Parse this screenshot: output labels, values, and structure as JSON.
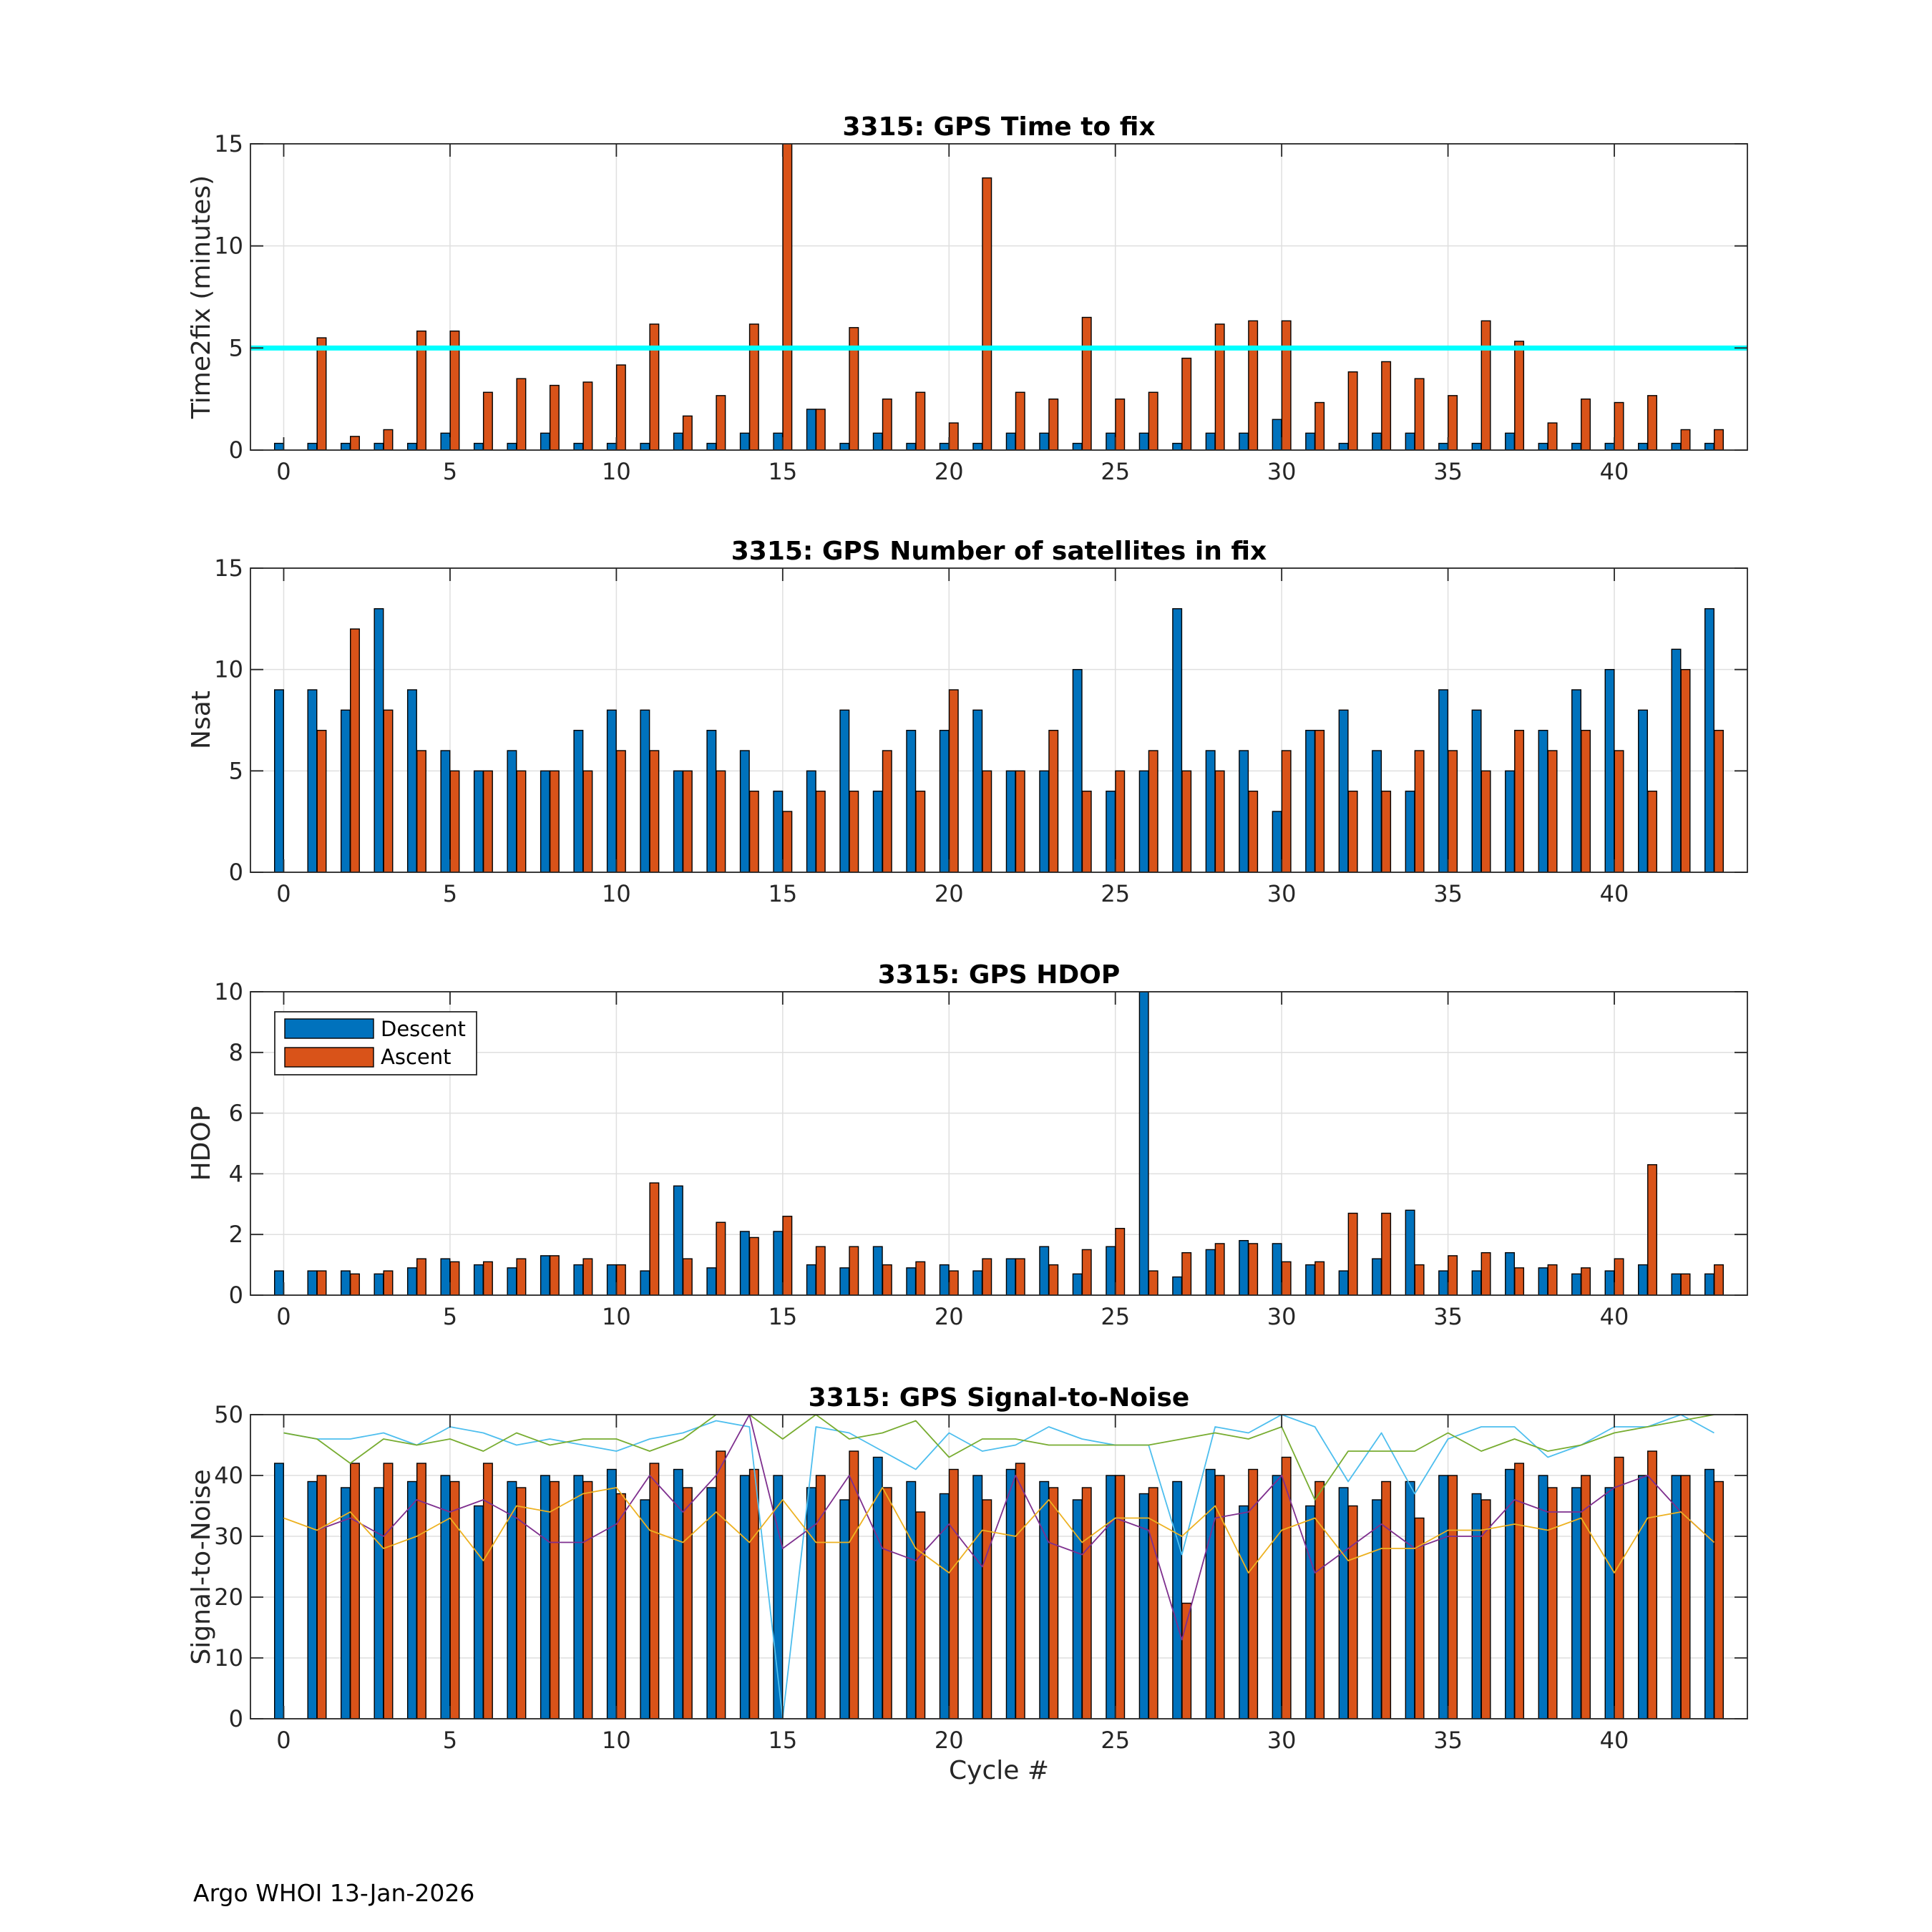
{
  "footer": "Argo WHOI 13-Jan-2026",
  "colors": {
    "descent": "#0072BD",
    "ascent": "#D95319",
    "background": "#FFFFFF"
  },
  "chart_data": [
    {
      "type": "bar",
      "title": "3315: GPS Time to fix",
      "ylabel": "Time2fix (minutes)",
      "xlim": [
        -1,
        44
      ],
      "ylim": [
        0,
        15
      ],
      "xticks": [
        0,
        5,
        10,
        15,
        20,
        25,
        30,
        35,
        40
      ],
      "yticks": [
        0,
        5,
        10,
        15
      ],
      "grid": true,
      "x": [
        0,
        1,
        2,
        3,
        4,
        5,
        6,
        7,
        8,
        9,
        10,
        11,
        12,
        13,
        14,
        15,
        16,
        17,
        18,
        19,
        20,
        21,
        22,
        23,
        24,
        25,
        26,
        27,
        28,
        29,
        30,
        31,
        32,
        33,
        34,
        35,
        36,
        37,
        38,
        39,
        40,
        41,
        42,
        43
      ],
      "series": {
        "descent": [
          0.33,
          0.33,
          0.33,
          0.33,
          0.33,
          0.83,
          0.33,
          0.33,
          0.83,
          0.33,
          0.33,
          0.33,
          0.83,
          0.33,
          0.83,
          0.83,
          2.0,
          0.33,
          0.83,
          0.33,
          0.33,
          0.33,
          0.83,
          0.83,
          0.33,
          0.83,
          0.83,
          0.33,
          0.83,
          0.83,
          1.5,
          0.83,
          0.33,
          0.83,
          0.83,
          0.33,
          0.33,
          0.83,
          0.33,
          0.33,
          0.33,
          0.33,
          0.33,
          0.33
        ],
        "ascent": [
          null,
          5.5,
          0.67,
          1.0,
          5.83,
          5.83,
          2.83,
          3.5,
          3.17,
          3.33,
          4.17,
          6.17,
          1.67,
          2.67,
          6.17,
          15.3,
          2.0,
          6.0,
          2.5,
          2.83,
          1.33,
          13.33,
          2.83,
          2.5,
          6.5,
          2.5,
          2.83,
          4.5,
          6.17,
          6.33,
          6.33,
          2.33,
          3.83,
          4.33,
          3.5,
          2.67,
          6.33,
          5.33,
          1.33,
          2.5,
          2.33,
          2.67,
          1.0,
          1.0
        ]
      },
      "reference_line": {
        "y": 5,
        "color": "#00FFFF"
      }
    },
    {
      "type": "bar",
      "title": "3315: GPS Number of satellites in fix",
      "ylabel": "Nsat",
      "xlim": [
        -1,
        44
      ],
      "ylim": [
        0,
        15
      ],
      "xticks": [
        0,
        5,
        10,
        15,
        20,
        25,
        30,
        35,
        40
      ],
      "yticks": [
        0,
        5,
        10,
        15
      ],
      "grid": true,
      "x": [
        0,
        1,
        2,
        3,
        4,
        5,
        6,
        7,
        8,
        9,
        10,
        11,
        12,
        13,
        14,
        15,
        16,
        17,
        18,
        19,
        20,
        21,
        22,
        23,
        24,
        25,
        26,
        27,
        28,
        29,
        30,
        31,
        32,
        33,
        34,
        35,
        36,
        37,
        38,
        39,
        40,
        41,
        42,
        43
      ],
      "series": {
        "descent": [
          9,
          9,
          8,
          13,
          9,
          6,
          5,
          6,
          5,
          7,
          8,
          8,
          5,
          7,
          6,
          4,
          5,
          8,
          4,
          7,
          7,
          8,
          5,
          5,
          10,
          4,
          5,
          13,
          6,
          6,
          3,
          7,
          8,
          6,
          4,
          9,
          8,
          5,
          7,
          9,
          10,
          8,
          11,
          13
        ],
        "ascent": [
          null,
          7,
          12,
          8,
          6,
          5,
          5,
          5,
          5,
          5,
          6,
          6,
          5,
          5,
          4,
          3,
          4,
          4,
          6,
          4,
          9,
          5,
          5,
          7,
          4,
          5,
          6,
          5,
          5,
          4,
          6,
          7,
          4,
          4,
          6,
          6,
          5,
          7,
          6,
          7,
          6,
          4,
          10,
          7
        ]
      }
    },
    {
      "type": "bar",
      "title": "3315: GPS HDOP",
      "ylabel": "HDOP",
      "xlim": [
        -1,
        44
      ],
      "ylim": [
        0,
        10
      ],
      "xticks": [
        0,
        5,
        10,
        15,
        20,
        25,
        30,
        35,
        40
      ],
      "yticks": [
        0,
        2,
        4,
        6,
        8,
        10
      ],
      "grid": true,
      "legend": {
        "location": "top-left",
        "entries": [
          "Descent",
          "Ascent"
        ]
      },
      "x": [
        0,
        1,
        2,
        3,
        4,
        5,
        6,
        7,
        8,
        9,
        10,
        11,
        12,
        13,
        14,
        15,
        16,
        17,
        18,
        19,
        20,
        21,
        22,
        23,
        24,
        25,
        26,
        27,
        28,
        29,
        30,
        31,
        32,
        33,
        34,
        35,
        36,
        37,
        38,
        39,
        40,
        41,
        42,
        43
      ],
      "series": {
        "descent": [
          0.8,
          0.8,
          0.8,
          0.7,
          0.9,
          1.2,
          1.0,
          0.9,
          1.3,
          1.0,
          1.0,
          0.8,
          3.6,
          0.9,
          2.1,
          2.1,
          1.0,
          0.9,
          1.6,
          0.9,
          1.0,
          0.8,
          1.2,
          1.6,
          0.7,
          1.6,
          10,
          0.6,
          1.5,
          1.8,
          1.7,
          1.0,
          0.8,
          1.2,
          2.8,
          0.8,
          0.8,
          1.4,
          0.9,
          0.7,
          0.8,
          1.0,
          0.7,
          0.7
        ],
        "ascent": [
          null,
          0.8,
          0.7,
          0.8,
          1.2,
          1.1,
          1.1,
          1.2,
          1.3,
          1.2,
          1.0,
          3.7,
          1.2,
          2.4,
          1.9,
          2.6,
          1.6,
          1.6,
          1.0,
          1.1,
          0.8,
          1.2,
          1.2,
          1.0,
          1.5,
          2.2,
          0.8,
          1.4,
          1.7,
          1.7,
          1.1,
          1.1,
          2.7,
          2.7,
          1.0,
          1.3,
          1.4,
          0.9,
          1.0,
          0.9,
          1.2,
          4.3,
          0.7,
          1.0
        ]
      }
    },
    {
      "type": "bar",
      "title": "3315: GPS Signal-to-Noise",
      "ylabel": "Signal-to-Noise",
      "xlabel": "Cycle #",
      "xlim": [
        -1,
        44
      ],
      "ylim": [
        0,
        50
      ],
      "xticks": [
        0,
        5,
        10,
        15,
        20,
        25,
        30,
        35,
        40
      ],
      "yticks": [
        0,
        10,
        20,
        30,
        40,
        50
      ],
      "grid": true,
      "x": [
        0,
        1,
        2,
        3,
        4,
        5,
        6,
        7,
        8,
        9,
        10,
        11,
        12,
        13,
        14,
        15,
        16,
        17,
        18,
        19,
        20,
        21,
        22,
        23,
        24,
        25,
        26,
        27,
        28,
        29,
        30,
        31,
        32,
        33,
        34,
        35,
        36,
        37,
        38,
        39,
        40,
        41,
        42,
        43
      ],
      "series": {
        "descent": [
          42,
          39,
          38,
          38,
          39,
          40,
          35,
          39,
          40,
          40,
          41,
          36,
          41,
          38,
          40,
          40,
          38,
          36,
          43,
          39,
          37,
          40,
          41,
          39,
          36,
          40,
          37,
          39,
          41,
          35,
          40,
          35,
          38,
          36,
          39,
          40,
          37,
          41,
          40,
          38,
          38,
          40,
          40,
          41
        ],
        "ascent": [
          null,
          40,
          42,
          42,
          42,
          39,
          42,
          38,
          39,
          39,
          37,
          42,
          38,
          44,
          41,
          null,
          40,
          44,
          38,
          34,
          41,
          36,
          42,
          38,
          38,
          40,
          38,
          19,
          40,
          41,
          43,
          39,
          35,
          39,
          33,
          40,
          36,
          42,
          38,
          40,
          43,
          44,
          40,
          39
        ]
      },
      "lines": [
        {
          "color": "#4DBEEE",
          "values": [
            47,
            46,
            46,
            47,
            45,
            48,
            47,
            45,
            46,
            45,
            44,
            46,
            47,
            49,
            48,
            0,
            48,
            47,
            44,
            41,
            47,
            44,
            45,
            48,
            46,
            45,
            45,
            27,
            48,
            47,
            50,
            48,
            39,
            47,
            37,
            46,
            48,
            48,
            43,
            45,
            48,
            48,
            50,
            47
          ]
        },
        {
          "color": "#77AC30",
          "values": [
            47,
            46,
            42,
            46,
            45,
            46,
            44,
            47,
            45,
            46,
            46,
            44,
            46,
            50,
            50,
            46,
            50,
            46,
            47,
            49,
            43,
            46,
            46,
            45,
            45,
            45,
            45,
            46,
            47,
            46,
            48,
            36,
            44,
            44,
            44,
            47,
            44,
            46,
            44,
            45,
            47,
            48,
            49,
            50
          ]
        },
        {
          "color": "#7E2F8E",
          "values": [
            null,
            31,
            33,
            30,
            36,
            34,
            36,
            33,
            29,
            29,
            32,
            40,
            34,
            40,
            50,
            28,
            32,
            40,
            28,
            26,
            32,
            25,
            40,
            29,
            27,
            33,
            31,
            13,
            33,
            34,
            40,
            24,
            28,
            32,
            28,
            30,
            30,
            36,
            34,
            34,
            38,
            40,
            34,
            29
          ]
        },
        {
          "color": "#EDB120",
          "values": [
            33,
            31,
            34,
            28,
            30,
            33,
            26,
            35,
            34,
            37,
            38,
            31,
            29,
            34,
            29,
            36,
            29,
            29,
            38,
            28,
            24,
            31,
            30,
            36,
            29,
            33,
            33,
            30,
            35,
            24,
            31,
            33,
            26,
            28,
            28,
            31,
            31,
            32,
            31,
            33,
            24,
            33,
            34,
            29
          ]
        }
      ]
    }
  ]
}
